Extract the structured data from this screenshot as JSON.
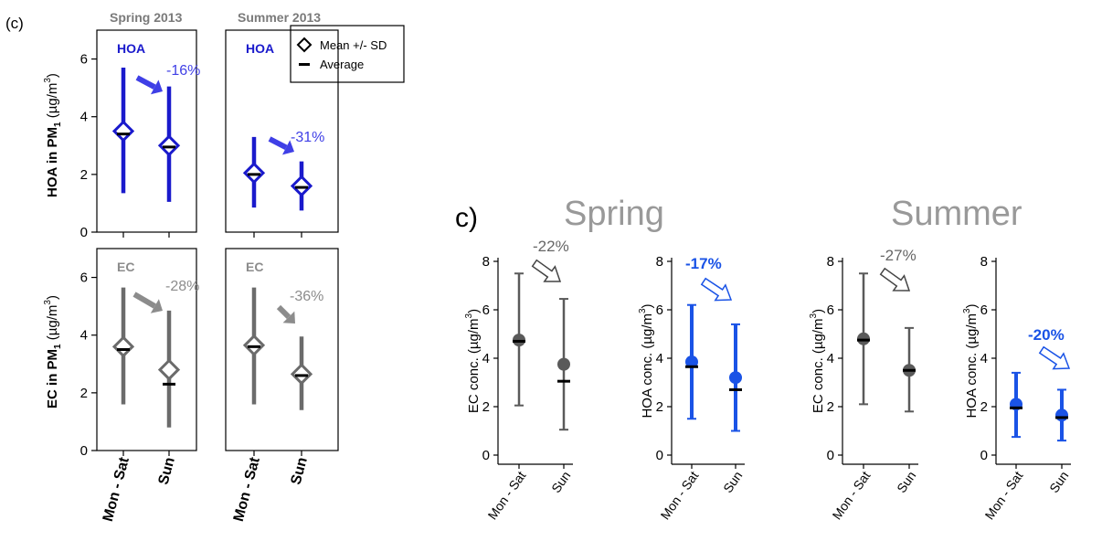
{
  "colors": {
    "blue": "#1a1acc",
    "bright_blue": "#1a53e6",
    "gray": "#6b6b6b",
    "light_gray": "#8c8c8c",
    "black": "#000000"
  },
  "figure_left": {
    "panel_label": "(c)",
    "col_titles": [
      "Spring 2013",
      "Summer 2013"
    ],
    "legend": {
      "mean_label": "Mean +/- SD",
      "avg_label": "Average"
    },
    "x_categories": [
      "Mon - Sat",
      "Sun"
    ],
    "row_ylabels": [
      {
        "main": "HOA in PM",
        "sub": "1",
        "unit_pre": " (µg/m",
        "sup": "3",
        "unit_post": ")"
      },
      {
        "main": "EC in PM",
        "sub": "1",
        "unit_pre": " (µg/m",
        "sup": "3",
        "unit_post": ")"
      }
    ],
    "yticks": [
      "0",
      "2",
      "4",
      "6"
    ]
  },
  "figure_right": {
    "panel_label": "c)",
    "group_titles": [
      "Spring",
      "Summer"
    ],
    "x_categories": [
      "Mon - Sat",
      "Sun"
    ],
    "yticks": [
      "0",
      "2",
      "4",
      "6",
      "8"
    ],
    "ylabels": {
      "ec": {
        "pre": "EC conc.  (µg/m",
        "sup": "3",
        "post": ")"
      },
      "hoa": {
        "pre": "HOA conc.  (µg/m",
        "sup": "3",
        "post": ")"
      }
    }
  },
  "chart_data": [
    {
      "type": "scatter",
      "title": "Spring 2013",
      "panel": "HOA",
      "ylim": [
        0,
        7
      ],
      "categories": [
        "Mon - Sat",
        "Sun"
      ],
      "mean": [
        3.5,
        3.0
      ],
      "sd_low": [
        1.35,
        1.05
      ],
      "sd_high": [
        5.7,
        5.05
      ],
      "average": [
        3.4,
        2.95
      ],
      "change": "-16%"
    },
    {
      "type": "scatter",
      "title": "Summer 2013",
      "panel": "HOA",
      "ylim": [
        0,
        7
      ],
      "categories": [
        "Mon - Sat",
        "Sun"
      ],
      "mean": [
        2.05,
        1.6
      ],
      "sd_low": [
        0.85,
        0.75
      ],
      "sd_high": [
        3.3,
        2.45
      ],
      "average": [
        2.0,
        1.55
      ],
      "change": "-31%"
    },
    {
      "type": "scatter",
      "title": "Spring 2013",
      "panel": "EC",
      "ylim": [
        0,
        7
      ],
      "categories": [
        "Mon - Sat",
        "Sun"
      ],
      "mean": [
        3.6,
        2.8
      ],
      "sd_low": [
        1.6,
        0.8
      ],
      "sd_high": [
        5.65,
        4.85
      ],
      "average": [
        3.5,
        2.3
      ],
      "change": "-28%"
    },
    {
      "type": "scatter",
      "title": "Summer 2013",
      "panel": "EC",
      "ylim": [
        0,
        7
      ],
      "categories": [
        "Mon - Sat",
        "Sun"
      ],
      "mean": [
        3.65,
        2.65
      ],
      "sd_low": [
        1.6,
        1.4
      ],
      "sd_high": [
        5.65,
        3.95
      ],
      "average": [
        3.6,
        2.6
      ],
      "change": "-36%"
    },
    {
      "type": "scatter",
      "title": "Spring",
      "panel": "EC",
      "ylim": [
        0,
        8
      ],
      "categories": [
        "Mon - Sat",
        "Sun"
      ],
      "mean": [
        4.75,
        3.75
      ],
      "low": [
        2.05,
        1.05
      ],
      "high": [
        7.5,
        6.45
      ],
      "average": [
        4.7,
        3.05
      ],
      "change": "-22%"
    },
    {
      "type": "scatter",
      "title": "Spring",
      "panel": "HOA",
      "ylim": [
        0,
        8
      ],
      "categories": [
        "Mon - Sat",
        "Sun"
      ],
      "mean": [
        3.85,
        3.2
      ],
      "low": [
        1.5,
        1.0
      ],
      "high": [
        6.2,
        5.4
      ],
      "average": [
        3.65,
        2.7
      ],
      "change": "-17%"
    },
    {
      "type": "scatter",
      "title": "Summer",
      "panel": "EC",
      "ylim": [
        0,
        8
      ],
      "categories": [
        "Mon - Sat",
        "Sun"
      ],
      "mean": [
        4.8,
        3.5
      ],
      "low": [
        2.1,
        1.8
      ],
      "high": [
        7.5,
        5.25
      ],
      "average": [
        4.75,
        3.5
      ],
      "change": "-27%"
    },
    {
      "type": "scatter",
      "title": "Summer",
      "panel": "HOA",
      "ylim": [
        0,
        8
      ],
      "categories": [
        "Mon - Sat",
        "Sun"
      ],
      "mean": [
        2.1,
        1.65
      ],
      "low": [
        0.75,
        0.6
      ],
      "high": [
        3.4,
        2.7
      ],
      "average": [
        1.95,
        1.55
      ],
      "change": "-20%"
    }
  ]
}
